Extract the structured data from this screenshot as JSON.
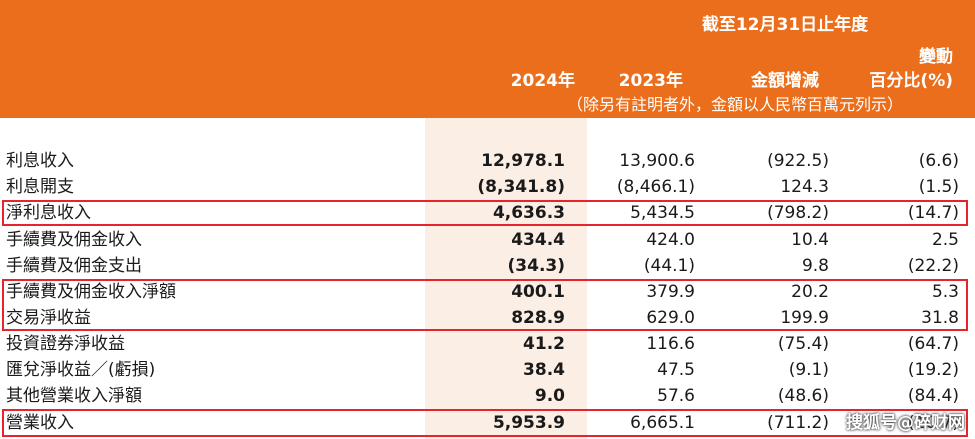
{
  "header": {
    "period": "截至12月31日止年度",
    "col1": "2024年",
    "col2": "2023年",
    "col3": "金額增減",
    "col4_line1": "變動",
    "col4_line2": "百分比(%)",
    "note": "（除另有註明者外，金額以人民幣百萬元列示）"
  },
  "rows": [
    {
      "label": "利息收入",
      "v2024": "12,978.1",
      "v2023": "13,900.6",
      "change": "(922.5)",
      "pct": "(6.6)"
    },
    {
      "label": "利息開支",
      "v2024": "(8,341.8)",
      "v2023": "(8,466.1)",
      "change": "124.3",
      "pct": "(1.5)"
    },
    {
      "label": "淨利息收入",
      "v2024": "4,636.3",
      "v2023": "5,434.5",
      "change": "(798.2)",
      "pct": "(14.7)"
    },
    {
      "label": "手續費及佣金收入",
      "v2024": "434.4",
      "v2023": "424.0",
      "change": "10.4",
      "pct": "2.5"
    },
    {
      "label": "手續費及佣金支出",
      "v2024": "(34.3)",
      "v2023": "(44.1)",
      "change": "9.8",
      "pct": "(22.2)"
    },
    {
      "label": "手續費及佣金收入淨額",
      "v2024": "400.1",
      "v2023": "379.9",
      "change": "20.2",
      "pct": "5.3"
    },
    {
      "label": "交易淨收益",
      "v2024": "828.9",
      "v2023": "629.0",
      "change": "199.9",
      "pct": "31.8"
    },
    {
      "label": "投資證券淨收益",
      "v2024": "41.2",
      "v2023": "116.6",
      "change": "(75.4)",
      "pct": "(64.7)"
    },
    {
      "label": "匯兌淨收益／(虧損)",
      "v2024": "38.4",
      "v2023": "47.5",
      "change": "(9.1)",
      "pct": "(19.2)"
    },
    {
      "label": "其他營業收入淨額",
      "v2024": "9.0",
      "v2023": "57.6",
      "change": "(48.6)",
      "pct": "(84.4)"
    },
    {
      "label": "營業收入",
      "v2024": "5,953.9",
      "v2023": "6,665.1",
      "change": "(711.2)",
      "pct": "(10.7)"
    }
  ],
  "watermark": "搜狐号@碎财网",
  "colors": {
    "header_bg": "#ea6e1b",
    "highlight_border": "#e5242d",
    "shade": "#fbeee4"
  }
}
